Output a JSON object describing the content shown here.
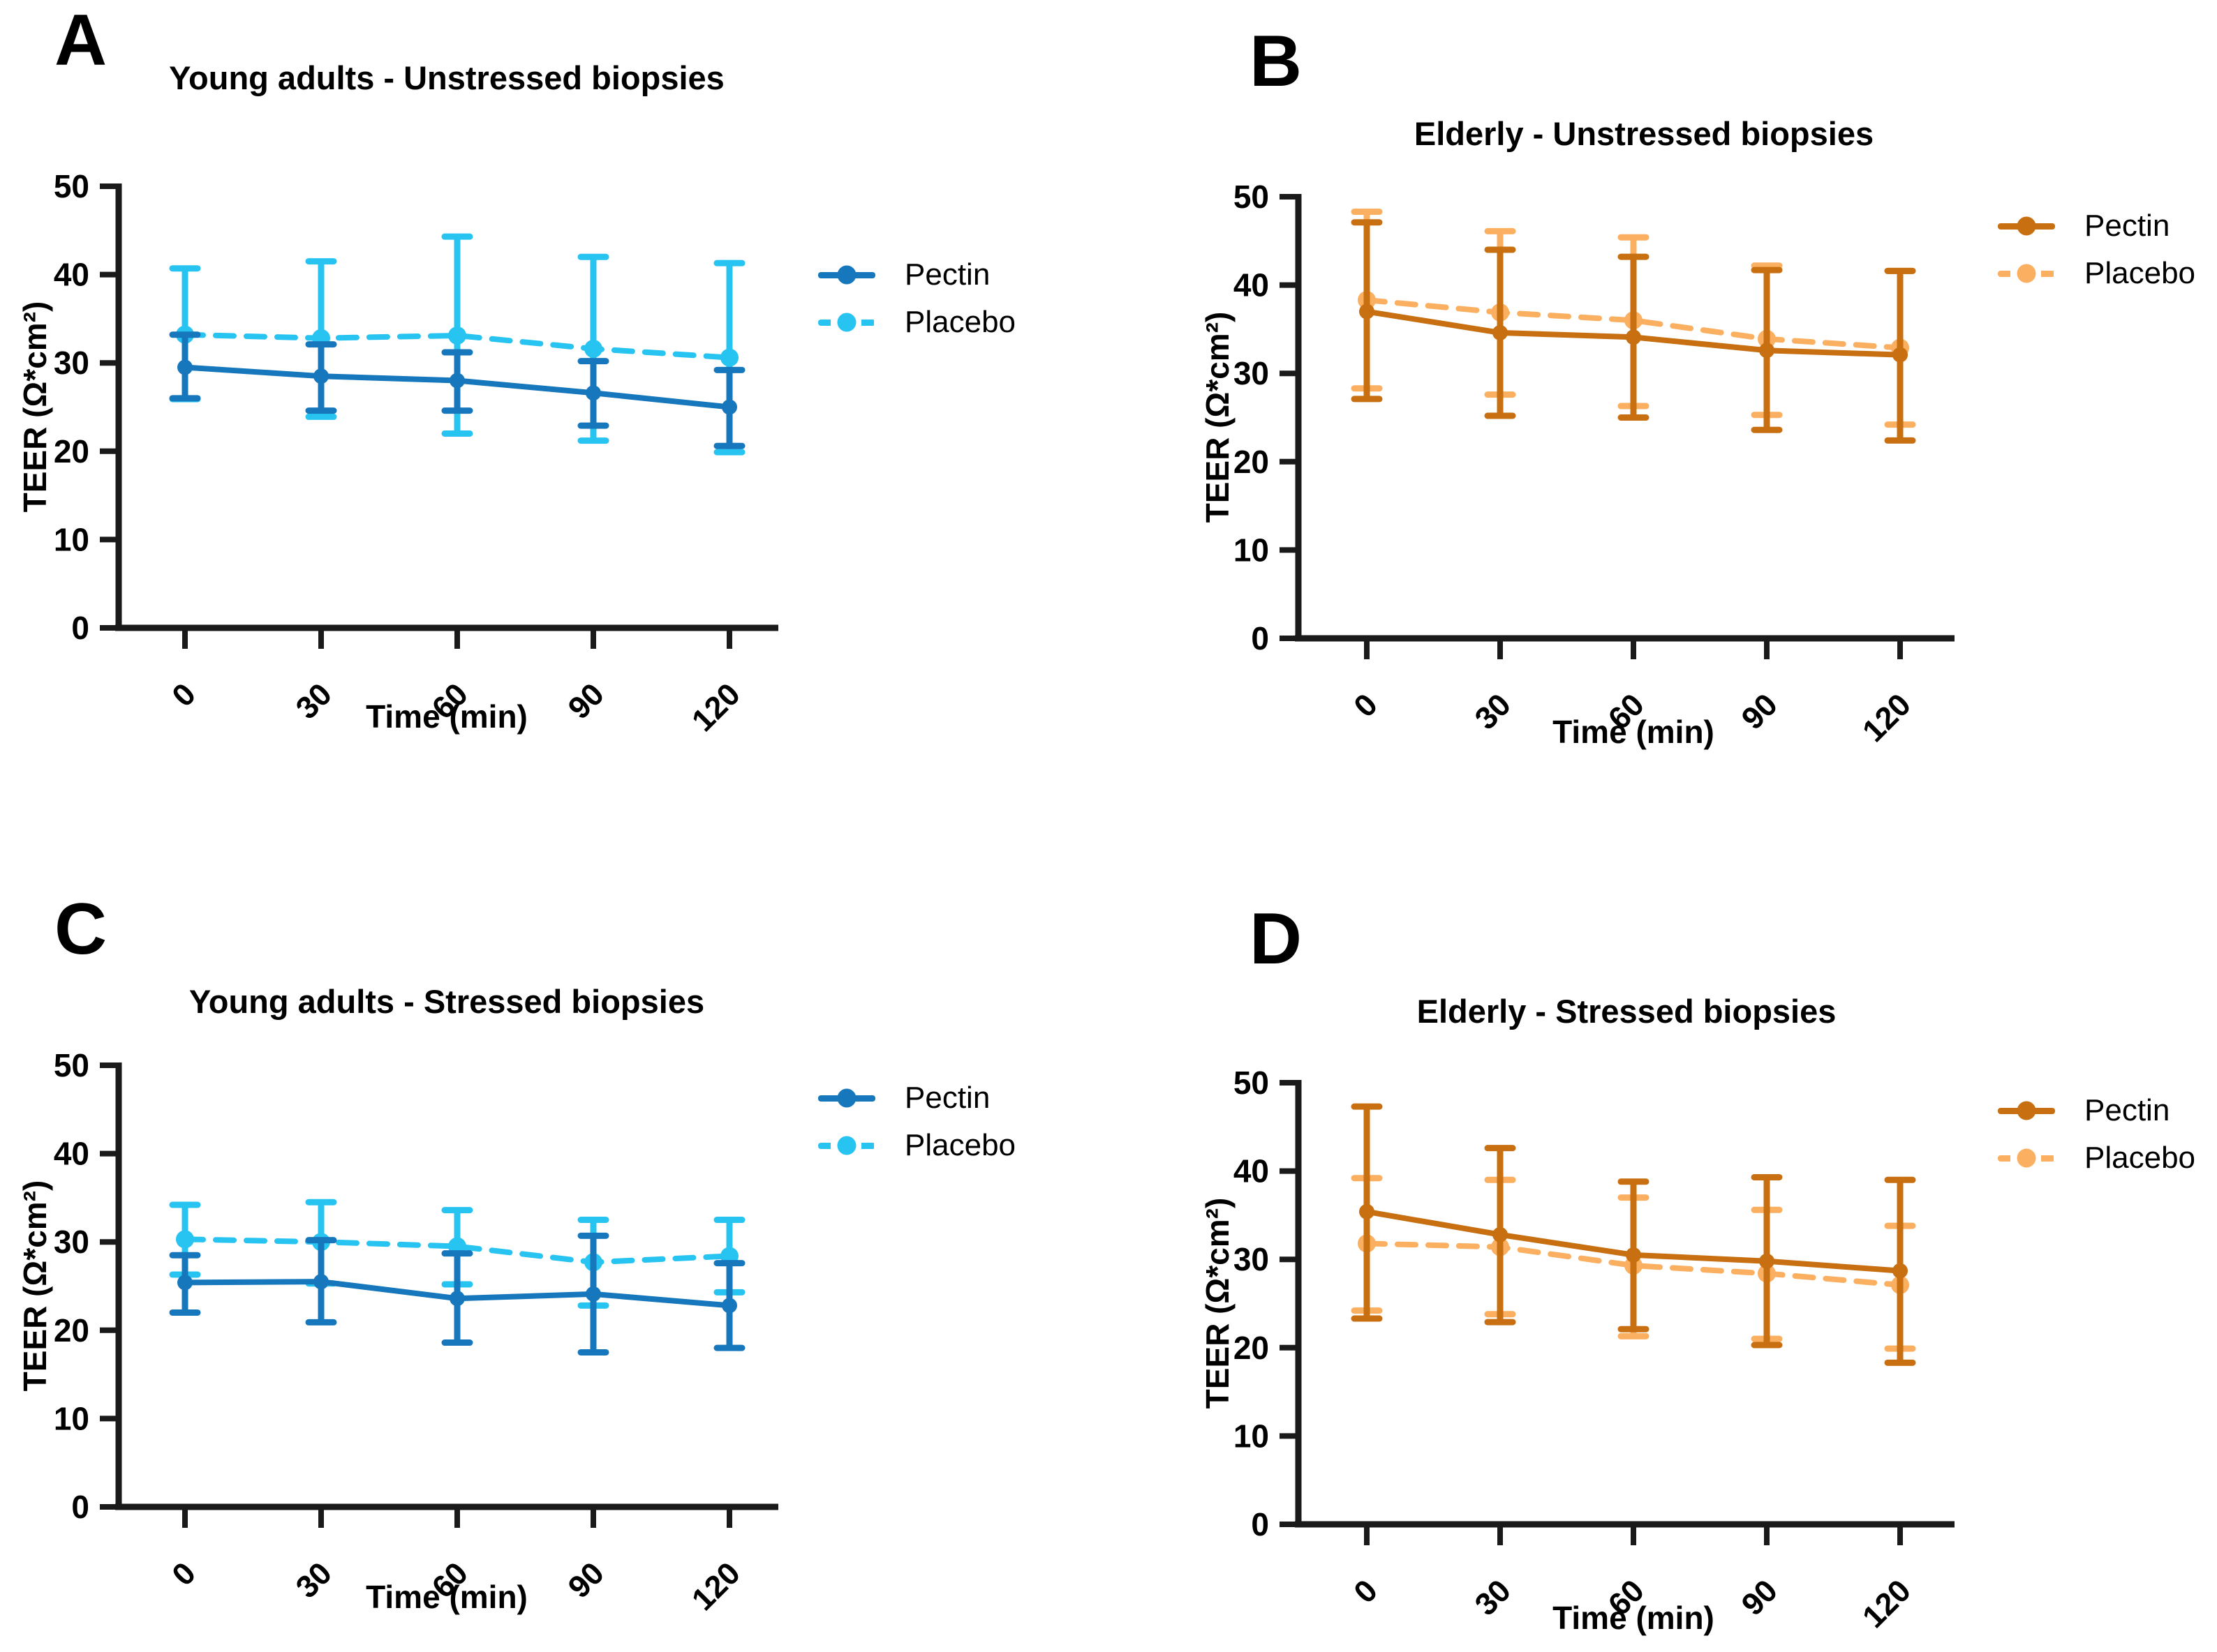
{
  "figure": {
    "background": "#ffffff",
    "axis_color": "#1a1a1a",
    "accent_colors": {
      "young_pectin_blue": "#1777BC",
      "young_placebo_cyan": "#27C4F1",
      "elderly_pectin_orange": "#C76F11",
      "elderly_placebo_light_orange": "#FAAF61"
    }
  },
  "chart_data": [
    {
      "type": "line",
      "letter": "A",
      "title": "Young adults - Unstressed biopsies",
      "xlabel": "Time (min)",
      "ylabel": "TEER (Ω*cm²)",
      "x": [
        0,
        30,
        60,
        90,
        120
      ],
      "x_ticklabels": [
        "0",
        "30",
        "60",
        "90",
        "120"
      ],
      "y_ticks": [
        0,
        10,
        20,
        30,
        40,
        50
      ],
      "ylim": [
        0,
        50
      ],
      "grid": false,
      "legend_position": "right",
      "series": [
        {
          "name": "Pectin",
          "color": "#1777BC",
          "line_style": "solid",
          "marker": "circle",
          "values": [
            29.5,
            28.5,
            28.0,
            26.6,
            25.0
          ],
          "err_low": [
            26.0,
            24.6,
            24.6,
            22.9,
            20.6
          ],
          "err_high": [
            33.2,
            32.1,
            31.2,
            30.2,
            29.2
          ]
        },
        {
          "name": "Placebo",
          "color": "#27C4F1",
          "line_style": "dashed",
          "marker": "circle",
          "values": [
            33.2,
            32.8,
            33.1,
            31.6,
            30.6
          ],
          "err_low": [
            25.9,
            23.9,
            22.0,
            21.2,
            19.9
          ],
          "err_high": [
            40.7,
            41.5,
            44.3,
            42.0,
            41.3
          ]
        }
      ]
    },
    {
      "type": "line",
      "letter": "B",
      "title": "Elderly - Unstressed biopsies",
      "xlabel": "Time (min)",
      "ylabel": "TEER (Ω*cm²)",
      "x": [
        0,
        30,
        60,
        90,
        120
      ],
      "x_ticklabels": [
        "0",
        "30",
        "60",
        "90",
        "120"
      ],
      "y_ticks": [
        0,
        10,
        20,
        30,
        40,
        50
      ],
      "ylim": [
        0,
        50
      ],
      "grid": false,
      "legend_position": "right",
      "series": [
        {
          "name": "Pectin",
          "color": "#C76F11",
          "line_style": "solid",
          "marker": "circle",
          "values": [
            37.0,
            34.6,
            34.1,
            32.6,
            32.1
          ],
          "err_low": [
            27.1,
            25.2,
            25.0,
            23.6,
            22.4
          ],
          "err_high": [
            47.1,
            44.0,
            43.2,
            41.7,
            41.6
          ]
        },
        {
          "name": "Placebo",
          "color": "#FAAF61",
          "line_style": "dashed",
          "marker": "circle",
          "values": [
            38.3,
            36.9,
            36.0,
            33.9,
            32.9
          ],
          "err_low": [
            28.3,
            27.6,
            26.3,
            25.3,
            24.2
          ],
          "err_high": [
            48.3,
            46.1,
            45.4,
            42.2,
            41.6
          ]
        }
      ]
    },
    {
      "type": "line",
      "letter": "C",
      "title": "Young adults - Stressed biopsies",
      "xlabel": "Time (min)",
      "ylabel": "TEER (Ω*cm²)",
      "x": [
        0,
        30,
        60,
        90,
        120
      ],
      "x_ticklabels": [
        "0",
        "30",
        "60",
        "90",
        "120"
      ],
      "y_ticks": [
        0,
        10,
        20,
        30,
        40,
        50
      ],
      "ylim": [
        0,
        50
      ],
      "grid": false,
      "legend_position": "right",
      "series": [
        {
          "name": "Pectin",
          "color": "#1777BC",
          "line_style": "solid",
          "marker": "circle",
          "values": [
            25.4,
            25.5,
            23.6,
            24.1,
            22.8
          ],
          "err_low": [
            22.0,
            20.9,
            18.6,
            17.5,
            18.0
          ],
          "err_high": [
            28.5,
            30.2,
            28.7,
            30.7,
            27.6
          ]
        },
        {
          "name": "Placebo",
          "color": "#27C4F1",
          "line_style": "dashed",
          "marker": "circle",
          "values": [
            30.3,
            30.0,
            29.5,
            27.7,
            28.4
          ],
          "err_low": [
            26.3,
            25.3,
            25.2,
            22.8,
            24.3
          ],
          "err_high": [
            34.2,
            34.5,
            33.6,
            32.5,
            32.5
          ]
        }
      ]
    },
    {
      "type": "line",
      "letter": "D",
      "title": "Elderly - Stressed biopsies",
      "xlabel": "Time (min)",
      "ylabel": "TEER (Ω*cm²)",
      "x": [
        0,
        30,
        60,
        90,
        120
      ],
      "x_ticklabels": [
        "0",
        "30",
        "60",
        "90",
        "120"
      ],
      "y_ticks": [
        0,
        10,
        20,
        30,
        40,
        50
      ],
      "ylim": [
        0,
        50
      ],
      "grid": false,
      "legend_position": "right",
      "series": [
        {
          "name": "Pectin",
          "color": "#C76F11",
          "line_style": "solid",
          "marker": "circle",
          "values": [
            35.4,
            32.8,
            30.5,
            29.8,
            28.7
          ],
          "err_low": [
            23.3,
            22.9,
            22.1,
            20.3,
            18.3
          ],
          "err_high": [
            47.3,
            42.6,
            38.8,
            39.3,
            39.0
          ]
        },
        {
          "name": "Placebo",
          "color": "#FAAF61",
          "line_style": "dashed",
          "marker": "circle",
          "values": [
            31.8,
            31.4,
            29.3,
            28.4,
            27.1
          ],
          "err_low": [
            24.2,
            23.8,
            21.3,
            21.0,
            19.9
          ],
          "err_high": [
            39.2,
            39.0,
            37.0,
            35.6,
            33.8
          ]
        }
      ]
    }
  ]
}
